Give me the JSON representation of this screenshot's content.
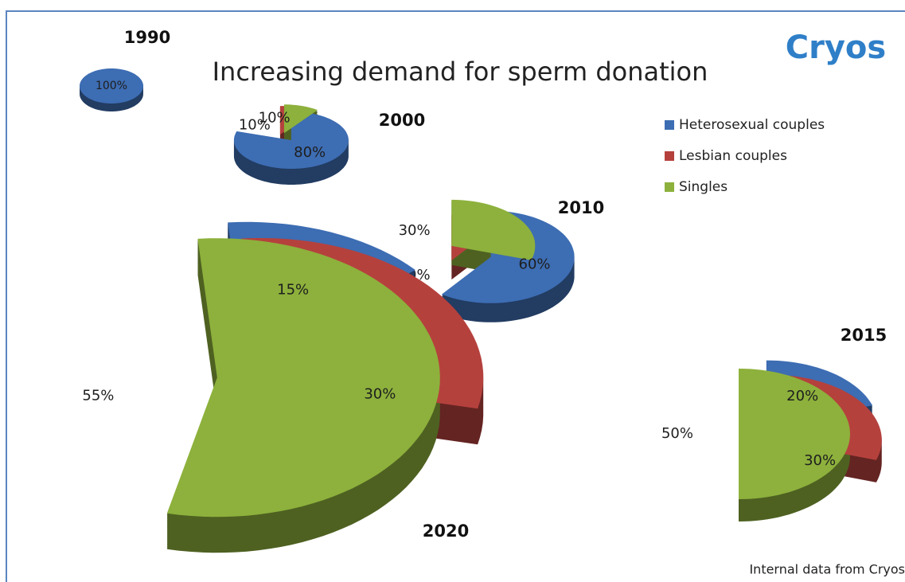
{
  "title": "Increasing demand for sperm donation",
  "logo": "Cryos",
  "source": "Internal data from Cryos",
  "chart_data": [
    {
      "type": "pie",
      "title": "1990",
      "categories": [
        "Heterosexual couples"
      ],
      "colors": [
        "#3d6db3"
      ],
      "values": [
        100
      ],
      "value_labels": [
        "100%"
      ]
    },
    {
      "type": "pie",
      "title": "2000",
      "categories": [
        "Heterosexual couples",
        "Lesbian couples",
        "Singles"
      ],
      "colors": [
        "#3d6db3",
        "#b5413d",
        "#8db13c"
      ],
      "values": [
        80,
        10,
        10
      ],
      "value_labels": [
        "80%",
        "10%",
        "10%"
      ]
    },
    {
      "type": "pie",
      "title": "2010",
      "categories": [
        "Heterosexual couples",
        "Lesbian couples",
        "Singles"
      ],
      "colors": [
        "#3d6db3",
        "#b5413d",
        "#8db13c"
      ],
      "values": [
        60,
        10,
        30
      ],
      "value_labels": [
        "60%",
        "10%",
        "30%"
      ]
    },
    {
      "type": "pie",
      "title": "2015",
      "categories": [
        "Heterosexual couples",
        "Lesbian couples",
        "Singles"
      ],
      "colors": [
        "#3d6db3",
        "#b5413d",
        "#8db13c"
      ],
      "values": [
        20,
        30,
        50
      ],
      "value_labels": [
        "20%",
        "30%",
        "50%"
      ]
    },
    {
      "type": "pie",
      "title": "2020",
      "categories": [
        "Heterosexual couples",
        "Lesbian couples",
        "Singles"
      ],
      "colors": [
        "#3d6db3",
        "#b5413d",
        "#8db13c"
      ],
      "values": [
        15,
        30,
        55
      ],
      "value_labels": [
        "15%",
        "30%",
        "55%"
      ]
    }
  ]
}
